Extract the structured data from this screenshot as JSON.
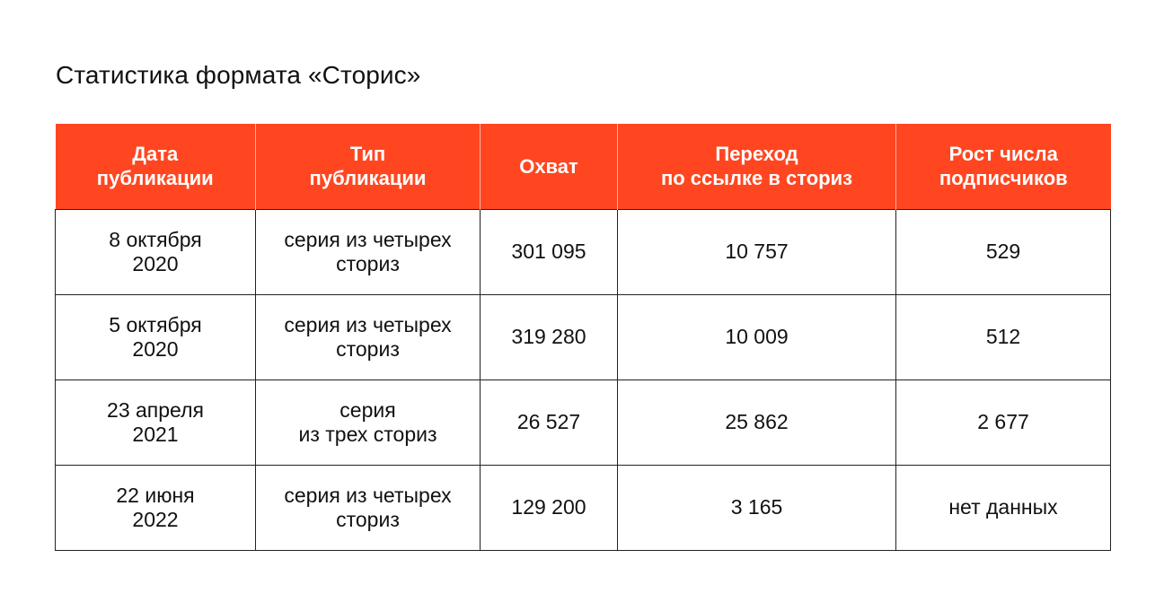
{
  "title": "Статистика формата «Сторис»",
  "table": {
    "headers": [
      "Дата\nпубликации",
      "Тип\nпубликации",
      "Охват",
      "Переход\nпо ссылке в сториз",
      "Рост числа\nподписчиков"
    ],
    "rows": [
      [
        "8 октября\n2020",
        "серия из четырех\nсториз",
        "301 095",
        "10 757",
        "529"
      ],
      [
        "5 октября\n2020",
        "серия из четырех\nсториз",
        "319 280",
        "10 009",
        "512"
      ],
      [
        "23 апреля\n2021",
        "серия\nиз трех сториз",
        "26 527",
        "25 862",
        "2 677"
      ],
      [
        "22 июня\n2022",
        "серия из четырех\nсториз",
        "129 200",
        "3 165",
        "нет данных"
      ]
    ]
  },
  "colors": {
    "header_background": "#ff4620",
    "header_text": "#ffffff",
    "body_text": "#111111",
    "border": "#222222"
  }
}
